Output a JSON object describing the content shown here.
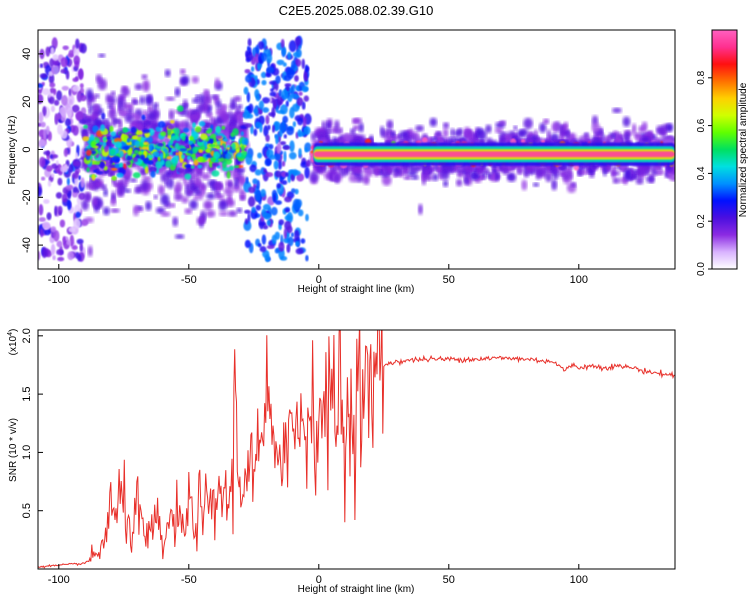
{
  "chart_data": [
    {
      "type": "heatmap",
      "title": "C2E5.2025.088.02.39.G10",
      "xlabel": "Height of straight line (km)",
      "ylabel": "Frequency (Hz)",
      "xlim": [
        -108,
        137
      ],
      "ylim": [
        -50,
        50
      ],
      "xticks": [
        -100,
        -50,
        0,
        50,
        100
      ],
      "yticks": [
        -40,
        -20,
        0,
        20,
        40
      ],
      "grid": false,
      "colorbar": {
        "label": "Normalized spectral amplitude",
        "range": [
          0,
          1
        ],
        "ticks": [
          0.0,
          0.2,
          0.4,
          0.6,
          0.8
        ],
        "colormap": [
          "#ffffff",
          "#d9b3ff",
          "#8b2be2",
          "#4b0fe0",
          "#0010ff",
          "#0090ff",
          "#00e0e0",
          "#00e060",
          "#60ff00",
          "#d0ff00",
          "#ffd000",
          "#ff7000",
          "#ff1010",
          "#ff3090",
          "#ff60c0"
        ]
      },
      "regions": [
        {
          "x": [
            -108,
            -90
          ],
          "description": "scattered faint points, frequency ±50 Hz",
          "amplitude": 0.15
        },
        {
          "x": [
            -90,
            -28
          ],
          "freq_center": 0,
          "freq_halfwidth": 8,
          "amplitude": 0.45
        },
        {
          "x": [
            -28,
            -4
          ],
          "description": "scattered points, frequency ±45 Hz",
          "amplitude": 0.3
        },
        {
          "x": [
            -2,
            137
          ],
          "freq_center": -2,
          "freq_halfwidth": 3,
          "amplitude": 0.95
        }
      ]
    },
    {
      "type": "line",
      "title": "",
      "xlabel": "Height of straight line (km)",
      "ylabel": "SNR (10 * v/v)",
      "ylabel_exponent": "(x10^4)",
      "exponent_base": "(x10",
      "exponent_power": "4",
      "exponent_close": ")",
      "xlim": [
        -108,
        137
      ],
      "ylim": [
        0,
        2.05
      ],
      "xticks": [
        -100,
        -50,
        0,
        50,
        100
      ],
      "yticks": [
        0.5,
        1.0,
        1.5,
        2.0
      ],
      "grid": false,
      "color": "#e8302a",
      "series": [
        {
          "x": [
            -108,
            -100,
            -90,
            -85,
            -82,
            -80,
            -78,
            -76,
            -74,
            -72,
            -70,
            -68,
            -65,
            -62,
            -60,
            -58,
            -55,
            -52,
            -50,
            -48,
            -45,
            -42,
            -40,
            -38,
            -35,
            -33,
            -32,
            -31,
            -30,
            -28,
            -25,
            -22,
            -20,
            -18,
            -15,
            -12,
            -10,
            -8,
            -5,
            -2,
            0,
            2,
            5,
            7,
            9,
            10,
            11,
            12,
            15,
            18,
            20,
            22,
            25,
            30,
            40,
            50,
            60,
            70,
            80,
            90,
            95,
            97,
            100,
            105,
            110,
            115,
            120,
            125,
            130,
            137
          ],
          "y": [
            0.02,
            0.03,
            0.05,
            0.12,
            0.3,
            0.55,
            0.4,
            0.65,
            0.45,
            0.35,
            0.55,
            0.3,
            0.25,
            0.4,
            0.2,
            0.35,
            0.45,
            0.3,
            0.55,
            0.4,
            0.6,
            0.45,
            0.5,
            0.7,
            0.55,
            0.8,
            1.85,
            0.6,
            0.75,
            0.9,
            0.85,
            1.0,
            1.5,
            0.9,
            1.1,
            1.2,
            1.15,
            1.25,
            1.3,
            1.35,
            1.3,
            1.4,
            1.45,
            1.2,
            2.05,
            0.45,
            1.5,
            1.3,
            1.55,
            1.5,
            1.55,
            1.65,
            1.75,
            1.78,
            1.8,
            1.8,
            1.8,
            1.81,
            1.8,
            1.78,
            1.7,
            1.75,
            1.73,
            1.74,
            1.73,
            1.74,
            1.73,
            1.7,
            1.68,
            1.66
          ]
        }
      ]
    }
  ]
}
